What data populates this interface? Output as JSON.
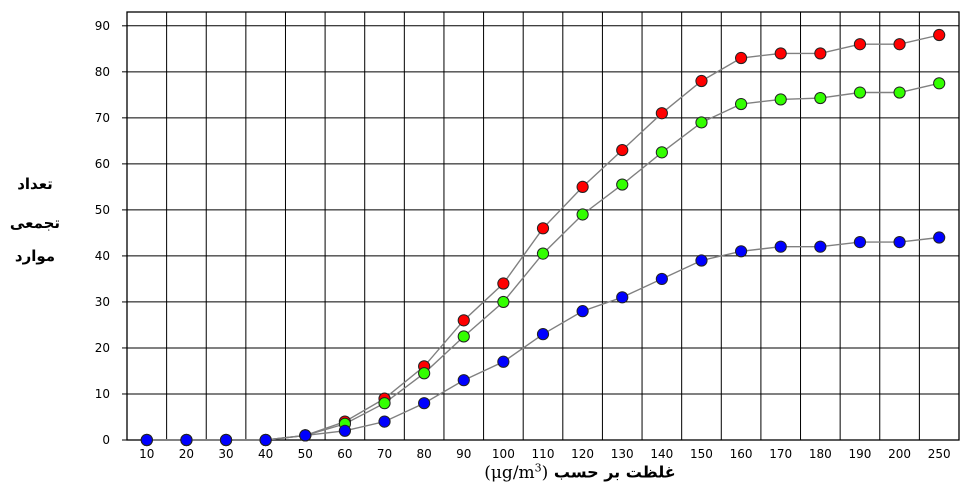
{
  "chart_data": {
    "type": "line",
    "xlabel_text": "غلظت بر حسب",
    "xlabel_unit": "(μg/m",
    "xlabel_unit_sup": "3",
    "xlabel_unit_close": ")",
    "ylabel_lines": [
      "تعداد",
      "تجمعی",
      "موارد"
    ],
    "categories": [
      "10",
      "20",
      "30",
      "40",
      "50",
      "60",
      "70",
      "80",
      "90",
      "100",
      "110",
      "120",
      "130",
      "140",
      "150",
      "160",
      "170",
      "180",
      "190",
      "200",
      "250"
    ],
    "yticks": [
      0,
      10,
      20,
      30,
      40,
      50,
      60,
      70,
      80,
      90
    ],
    "ylim": [
      0,
      93
    ],
    "grid": true,
    "legend": "none",
    "series": [
      {
        "color": "#ff0000",
        "values": [
          0,
          0,
          0,
          0,
          1,
          4,
          9,
          16,
          26,
          34,
          46,
          55,
          63,
          71,
          78,
          83,
          84,
          84,
          86,
          86,
          88
        ]
      },
      {
        "color": "#33ff00",
        "values": [
          0,
          0,
          0,
          0,
          1,
          3.5,
          8,
          14.5,
          22.5,
          30,
          40.5,
          49,
          55.5,
          62.5,
          69,
          73,
          74,
          74.3,
          75.5,
          75.5,
          77.5
        ]
      },
      {
        "color": "#0000ff",
        "values": [
          0,
          0,
          0,
          0,
          1,
          2,
          4,
          8,
          13,
          17,
          23,
          28,
          31,
          35,
          39,
          41,
          42,
          42,
          43,
          43,
          44
        ]
      }
    ]
  }
}
